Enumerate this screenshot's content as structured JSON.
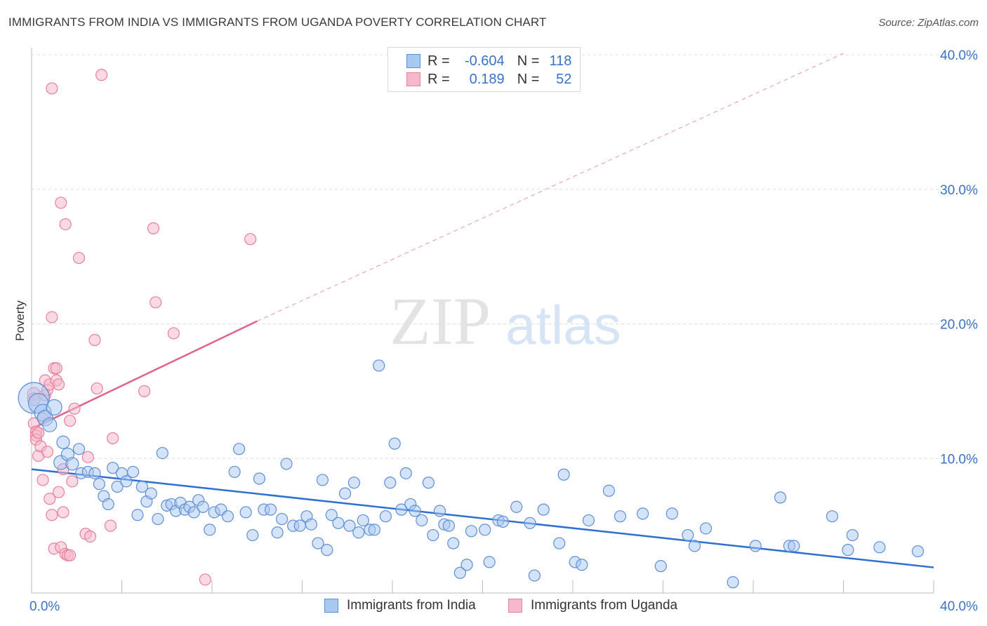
{
  "header": {
    "title": "IMMIGRANTS FROM INDIA VS IMMIGRANTS FROM UGANDA POVERTY CORRELATION CHART",
    "source": "Source: ZipAtlas.com"
  },
  "watermark": {
    "zip": "ZIP",
    "atlas": "atlas"
  },
  "legend_top": {
    "rows": [
      {
        "r_label": "R =",
        "r_value": "-0.604",
        "n_label": "N =",
        "n_value": "118"
      },
      {
        "r_label": "R =",
        "r_value": "0.189",
        "n_label": "N =",
        "n_value": "52"
      }
    ]
  },
  "colors": {
    "india_fill": "#a9c8ef",
    "india_stroke": "#5d8fd6",
    "india_line": "#2e6fd0",
    "uganda_fill": "#f6b9cb",
    "uganda_stroke": "#e77fa0",
    "uganda_line": "#e0638f",
    "grid": "#dcdcdc",
    "axis_text": "#3a72c4"
  },
  "chart_data": {
    "type": "scatter",
    "title": "IMMIGRANTS FROM INDIA VS IMMIGRANTS FROM UGANDA POVERTY CORRELATION CHART",
    "xlabel": "",
    "ylabel": "Poverty",
    "xlim": [
      0,
      40
    ],
    "ylim": [
      0,
      40
    ],
    "x_tick_labels": [
      "0.0%",
      "40.0%"
    ],
    "y_tick_labels": [
      "10.0%",
      "20.0%",
      "30.0%",
      "40.0%"
    ],
    "y_ticks": [
      10,
      20,
      30,
      40
    ],
    "legend": [
      "Immigrants from India",
      "Immigrants from Uganda"
    ],
    "series": [
      {
        "name": "Immigrants from India",
        "r": -0.604,
        "n": 118,
        "trend": {
          "x": [
            0,
            40
          ],
          "y": [
            9.2,
            1.9
          ]
        },
        "points": [
          [
            0.1,
            14.5,
            22
          ],
          [
            0.3,
            14.1,
            14
          ],
          [
            0.5,
            13.4,
            12
          ],
          [
            0.6,
            13.0,
            11
          ],
          [
            0.8,
            12.5,
            10
          ],
          [
            1.0,
            13.8,
            11
          ],
          [
            1.3,
            9.7,
            10
          ],
          [
            1.4,
            11.2,
            9
          ],
          [
            1.6,
            10.3,
            9
          ],
          [
            1.8,
            9.6,
            9
          ],
          [
            2.1,
            10.7,
            8
          ],
          [
            2.2,
            8.9,
            8
          ],
          [
            2.5,
            9.0,
            8
          ],
          [
            2.8,
            8.9,
            8
          ],
          [
            3.0,
            8.1,
            8
          ],
          [
            3.2,
            7.2,
            8
          ],
          [
            3.4,
            6.6,
            8
          ],
          [
            3.6,
            9.3,
            8
          ],
          [
            3.8,
            7.9,
            8
          ],
          [
            4.0,
            8.9,
            8
          ],
          [
            4.2,
            8.3,
            8
          ],
          [
            4.5,
            9.0,
            8
          ],
          [
            4.7,
            5.8,
            8
          ],
          [
            4.9,
            7.9,
            8
          ],
          [
            5.1,
            6.8,
            8
          ],
          [
            5.3,
            7.4,
            8
          ],
          [
            5.6,
            5.5,
            8
          ],
          [
            5.8,
            10.4,
            8
          ],
          [
            6.0,
            6.5,
            8
          ],
          [
            6.2,
            6.6,
            8
          ],
          [
            6.4,
            6.1,
            8
          ],
          [
            6.6,
            6.7,
            8
          ],
          [
            6.8,
            6.2,
            8
          ],
          [
            7.0,
            6.4,
            8
          ],
          [
            7.2,
            6.0,
            8
          ],
          [
            7.4,
            6.9,
            8
          ],
          [
            7.6,
            6.4,
            8
          ],
          [
            7.9,
            4.7,
            8
          ],
          [
            8.1,
            6.0,
            8
          ],
          [
            8.4,
            6.2,
            8
          ],
          [
            8.7,
            5.7,
            8
          ],
          [
            9.0,
            9.0,
            8
          ],
          [
            9.2,
            10.7,
            8
          ],
          [
            9.5,
            6.0,
            8
          ],
          [
            9.8,
            4.3,
            8
          ],
          [
            10.1,
            8.5,
            8
          ],
          [
            10.3,
            6.2,
            8
          ],
          [
            10.6,
            6.2,
            8
          ],
          [
            10.9,
            4.5,
            8
          ],
          [
            11.1,
            5.5,
            8
          ],
          [
            11.3,
            9.6,
            8
          ],
          [
            11.6,
            5.0,
            8
          ],
          [
            11.9,
            5.0,
            8
          ],
          [
            12.2,
            5.7,
            8
          ],
          [
            12.4,
            5.1,
            8
          ],
          [
            12.7,
            3.7,
            8
          ],
          [
            12.9,
            8.4,
            8
          ],
          [
            13.1,
            3.2,
            8
          ],
          [
            13.3,
            5.8,
            8
          ],
          [
            13.6,
            5.2,
            8
          ],
          [
            13.9,
            7.4,
            8
          ],
          [
            14.1,
            5.0,
            8
          ],
          [
            14.3,
            8.2,
            8
          ],
          [
            14.5,
            4.5,
            8
          ],
          [
            14.7,
            5.4,
            8
          ],
          [
            15.0,
            4.7,
            8
          ],
          [
            15.2,
            4.7,
            8
          ],
          [
            15.4,
            16.9,
            8
          ],
          [
            15.7,
            5.7,
            8
          ],
          [
            15.9,
            8.2,
            8
          ],
          [
            16.1,
            11.1,
            8
          ],
          [
            16.4,
            6.2,
            8
          ],
          [
            16.6,
            8.9,
            8
          ],
          [
            16.8,
            6.6,
            8
          ],
          [
            17.0,
            6.1,
            8
          ],
          [
            17.3,
            5.4,
            8
          ],
          [
            17.6,
            8.2,
            8
          ],
          [
            17.8,
            4.3,
            8
          ],
          [
            18.1,
            6.1,
            8
          ],
          [
            18.3,
            5.1,
            8
          ],
          [
            18.5,
            5.0,
            8
          ],
          [
            18.7,
            3.7,
            8
          ],
          [
            19.0,
            1.5,
            8
          ],
          [
            19.3,
            2.1,
            8
          ],
          [
            19.5,
            4.6,
            8
          ],
          [
            20.1,
            4.7,
            8
          ],
          [
            20.3,
            2.3,
            8
          ],
          [
            20.7,
            5.4,
            8
          ],
          [
            20.9,
            5.3,
            8
          ],
          [
            21.5,
            6.4,
            8
          ],
          [
            22.1,
            5.2,
            8
          ],
          [
            22.3,
            1.3,
            8
          ],
          [
            22.7,
            6.2,
            8
          ],
          [
            23.4,
            3.7,
            8
          ],
          [
            23.6,
            8.8,
            8
          ],
          [
            24.1,
            2.3,
            8
          ],
          [
            24.4,
            2.1,
            8
          ],
          [
            24.7,
            5.4,
            8
          ],
          [
            25.6,
            7.6,
            8
          ],
          [
            26.1,
            5.7,
            8
          ],
          [
            27.1,
            5.9,
            8
          ],
          [
            27.9,
            2.0,
            8
          ],
          [
            28.4,
            5.9,
            8
          ],
          [
            29.1,
            4.3,
            8
          ],
          [
            29.4,
            3.5,
            8
          ],
          [
            29.9,
            4.8,
            8
          ],
          [
            31.1,
            0.8,
            8
          ],
          [
            32.1,
            3.5,
            8
          ],
          [
            33.2,
            7.1,
            8
          ],
          [
            33.6,
            3.5,
            8
          ],
          [
            33.8,
            3.5,
            8
          ],
          [
            35.5,
            5.7,
            8
          ],
          [
            36.2,
            3.2,
            8
          ],
          [
            36.4,
            4.3,
            8
          ],
          [
            37.6,
            3.4,
            8
          ],
          [
            39.3,
            3.1,
            8
          ]
        ]
      },
      {
        "name": "Immigrants from Uganda",
        "r": 0.189,
        "n": 52,
        "trend": {
          "x": [
            0,
            10
          ],
          "y": [
            12.2,
            20.2
          ]
        },
        "trend_ext": {
          "x": [
            10,
            36
          ],
          "y": [
            20.2,
            40.1
          ]
        },
        "points": [
          [
            0.1,
            14.8,
            9
          ],
          [
            0.1,
            14.4,
            9
          ],
          [
            0.1,
            12.6,
            8
          ],
          [
            0.2,
            12.0,
            8
          ],
          [
            0.2,
            11.7,
            8
          ],
          [
            0.2,
            11.4,
            8
          ],
          [
            0.3,
            10.2,
            8
          ],
          [
            0.3,
            11.9,
            8
          ],
          [
            0.4,
            10.9,
            8
          ],
          [
            0.5,
            13.0,
            8
          ],
          [
            0.5,
            8.4,
            8
          ],
          [
            0.6,
            14.7,
            8
          ],
          [
            0.6,
            15.8,
            8
          ],
          [
            0.7,
            10.5,
            8
          ],
          [
            0.7,
            15.1,
            8
          ],
          [
            0.8,
            15.5,
            8
          ],
          [
            0.8,
            7.0,
            8
          ],
          [
            0.9,
            20.5,
            8
          ],
          [
            0.9,
            37.5,
            8
          ],
          [
            0.9,
            5.8,
            8
          ],
          [
            1.0,
            16.7,
            8
          ],
          [
            1.0,
            3.3,
            8
          ],
          [
            1.1,
            16.7,
            8
          ],
          [
            1.1,
            15.8,
            8
          ],
          [
            1.2,
            7.5,
            8
          ],
          [
            1.2,
            15.5,
            8
          ],
          [
            1.3,
            29.0,
            8
          ],
          [
            1.3,
            3.4,
            8
          ],
          [
            1.4,
            6.0,
            8
          ],
          [
            1.4,
            9.2,
            8
          ],
          [
            1.5,
            27.4,
            8
          ],
          [
            1.5,
            2.9,
            8
          ],
          [
            1.6,
            2.8,
            8
          ],
          [
            1.7,
            12.8,
            8
          ],
          [
            1.7,
            2.8,
            8
          ],
          [
            1.8,
            8.3,
            8
          ],
          [
            1.9,
            13.7,
            8
          ],
          [
            2.1,
            24.9,
            8
          ],
          [
            2.4,
            4.4,
            8
          ],
          [
            2.6,
            4.2,
            8
          ],
          [
            2.5,
            10.1,
            8
          ],
          [
            2.8,
            18.8,
            8
          ],
          [
            2.9,
            15.2,
            8
          ],
          [
            3.1,
            38.5,
            8
          ],
          [
            3.5,
            5.0,
            8
          ],
          [
            3.6,
            11.5,
            8
          ],
          [
            5.0,
            15.0,
            8
          ],
          [
            5.4,
            27.1,
            8
          ],
          [
            5.5,
            21.6,
            8
          ],
          [
            6.3,
            19.3,
            8
          ],
          [
            7.7,
            1.0,
            8
          ],
          [
            9.7,
            26.3,
            8
          ]
        ]
      }
    ]
  }
}
